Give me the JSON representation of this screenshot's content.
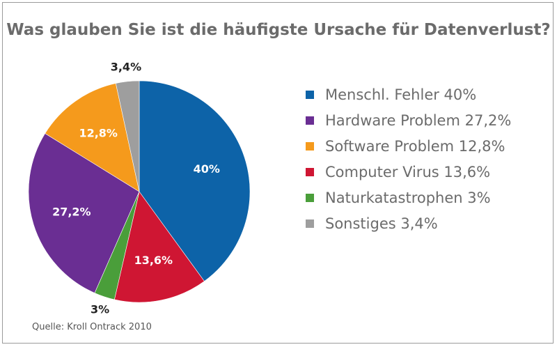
{
  "chart_data": {
    "type": "pie",
    "title": "Was glauben Sie ist die häufigste Ursache für Datenverlust?",
    "slices": [
      {
        "label": "Menschl. Fehler 40%",
        "value": 40,
        "display": "40%",
        "color": "#0d63a8",
        "label_color": "#ffffff"
      },
      {
        "label": "Computer Virus 13,6%",
        "value": 13.6,
        "display": "13,6%",
        "color": "#cf1633",
        "label_color": "#ffffff"
      },
      {
        "label": "Naturkatastrophen 3%",
        "value": 3,
        "display": "3%",
        "color": "#4a9e3a",
        "label_color": "#222222"
      },
      {
        "label": "Hardware Problem 27,2%",
        "value": 27.2,
        "display": "27,2%",
        "color": "#6a2e93",
        "label_color": "#ffffff"
      },
      {
        "label": "Software Problem 12,8%",
        "value": 12.8,
        "display": "12,8%",
        "color": "#f59a1c",
        "label_color": "#ffffff"
      },
      {
        "label": "Sonstiges 3,4%",
        "value": 3.4,
        "display": "3,4%",
        "color": "#9e9e9e",
        "label_color": "#222222"
      }
    ],
    "legend": [
      {
        "label": "Menschl. Fehler 40%",
        "color": "#0d63a8"
      },
      {
        "label": "Hardware Problem 27,2%",
        "color": "#6a2e93"
      },
      {
        "label": "Software Problem 12,8%",
        "color": "#f59a1c"
      },
      {
        "label": "Computer Virus 13,6%",
        "color": "#cf1633"
      },
      {
        "label": "Naturkatastrophen 3%",
        "color": "#4a9e3a"
      },
      {
        "label": "Sonstiges 3,4%",
        "color": "#9e9e9e"
      }
    ],
    "legend_position": "right",
    "source": "Quelle: Kroll Ontrack 2010"
  }
}
